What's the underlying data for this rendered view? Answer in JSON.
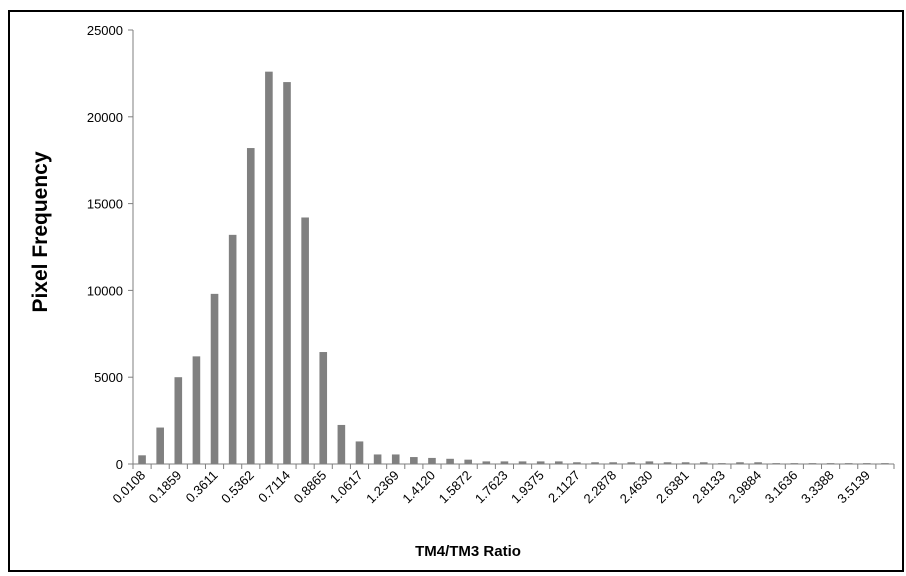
{
  "chart_data": {
    "type": "bar",
    "title": "",
    "xlabel": "TM4/TM3 Ratio",
    "ylabel": "Pixel Frequency",
    "ylim": [
      0,
      25000
    ],
    "yticks": [
      0,
      5000,
      10000,
      15000,
      20000,
      25000
    ],
    "grid": false,
    "legend": "none",
    "bar_color": "#808080",
    "categories": [
      "0.0108",
      "0.0984",
      "0.1859",
      "0.2735",
      "0.3611",
      "0.4486",
      "0.5362",
      "0.6238",
      "0.7114",
      "0.7989",
      "0.8865",
      "0.9741",
      "1.0617",
      "1.1493",
      "1.2369",
      "1.3244",
      "1.4120",
      "1.4996",
      "1.5872",
      "1.6747",
      "1.7623",
      "1.8499",
      "1.9375",
      "2.0251",
      "2.1127",
      "2.2002",
      "2.2878",
      "2.3754",
      "2.4630",
      "2.5505",
      "2.6381",
      "2.7257",
      "2.8133",
      "2.9008",
      "2.9884",
      "3.0760",
      "3.1636",
      "3.2511",
      "3.3388",
      "3.4263",
      "3.5139",
      "3.6015"
    ],
    "tick_labels": [
      "0.0108",
      "0.1859",
      "0.3611",
      "0.5362",
      "0.7114",
      "0.8865",
      "1.0617",
      "1.2369",
      "1.4120",
      "1.5872",
      "1.7623",
      "1.9375",
      "2.1127",
      "2.2878",
      "2.4630",
      "2.6381",
      "2.8133",
      "2.9884",
      "3.1636",
      "3.3388",
      "3.5139"
    ],
    "values": [
      500,
      2100,
      5000,
      6200,
      9800,
      13200,
      18200,
      22600,
      22000,
      14200,
      6450,
      2250,
      1300,
      550,
      550,
      400,
      350,
      300,
      250,
      150,
      150,
      150,
      150,
      150,
      100,
      100,
      100,
      100,
      150,
      100,
      100,
      100,
      50,
      100,
      100,
      50,
      50,
      50,
      50,
      50,
      50,
      50
    ]
  }
}
